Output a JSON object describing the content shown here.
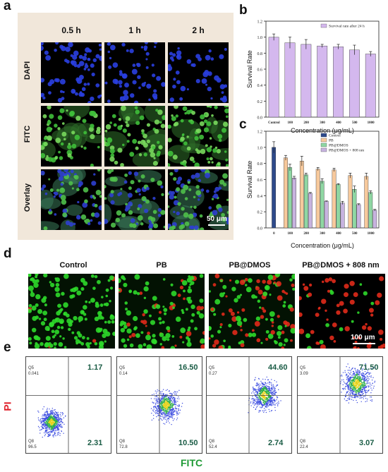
{
  "panels": {
    "a": "a",
    "b": "b",
    "c": "c",
    "d": "d",
    "e": "e"
  },
  "panel_a": {
    "times": [
      "0.5 h",
      "1 h",
      "2 h"
    ],
    "rows": [
      "DAPI",
      "FITC",
      "Overlay"
    ],
    "scalebar": "50 μm"
  },
  "panel_d": {
    "titles": [
      "Control",
      "PB",
      "PB@DMOS",
      "PB@DMOS + 808 nm"
    ],
    "scalebar": "100 μm"
  },
  "panel_e": {
    "ylabel": "PI",
    "xlabel": "FITC",
    "plots": [
      {
        "q2": "1.17",
        "q4": "2.31",
        "q5_label": "Q5",
        "q5_val": "0.041",
        "q8_label": "Q8",
        "q8_val": "96.5"
      },
      {
        "q2": "16.50",
        "q4": "10.50",
        "q5_label": "Q5",
        "q5_val": "0.14",
        "q8_label": "Q8",
        "q8_val": "72.8"
      },
      {
        "q2": "44.60",
        "q4": "2.74",
        "q5_label": "Q5",
        "q5_val": "0.27",
        "q8_label": "Q8",
        "q8_val": "52.4"
      },
      {
        "q2": "71.50",
        "q4": "3.07",
        "q5_label": "Q5",
        "q5_val": "3.09",
        "q8_label": "Q8",
        "q8_val": "22.4"
      }
    ]
  },
  "colors": {
    "control": "#2e4a8b",
    "pb": "#f7c99c",
    "pbdmos": "#8fd7a3",
    "pb808": "#c7b3df",
    "survival24": "#d4b8ee"
  },
  "chart_data": [
    {
      "id": "b",
      "type": "bar",
      "categories": [
        "Control",
        "100",
        "200",
        "300",
        "400",
        "500",
        "1000"
      ],
      "series": [
        {
          "name": "Survival rate after 24 h",
          "values": [
            1.0,
            0.93,
            0.91,
            0.89,
            0.88,
            0.84,
            0.79
          ],
          "errors": [
            0.04,
            0.07,
            0.06,
            0.02,
            0.03,
            0.06,
            0.03
          ]
        }
      ],
      "xlabel": "Concentration (μg/mL)",
      "ylabel": "Survival Rate",
      "ylim": [
        0,
        1.2
      ],
      "yticks": [
        "0.0",
        "0.2",
        "0.4",
        "0.6",
        "0.8",
        "1.0",
        "1.2"
      ],
      "legend": "top-right"
    },
    {
      "id": "c",
      "type": "bar",
      "categories": [
        "0",
        "100",
        "200",
        "300",
        "400",
        "500",
        "1000"
      ],
      "series": [
        {
          "name": "Control",
          "values": [
            1.0,
            null,
            null,
            null,
            null,
            null,
            null
          ],
          "errors": [
            0.07,
            null,
            null,
            null,
            null,
            null,
            null
          ]
        },
        {
          "name": "PB",
          "values": [
            null,
            0.87,
            0.83,
            0.73,
            0.72,
            0.65,
            0.64
          ],
          "errors": [
            null,
            0.03,
            0.06,
            0.02,
            0.02,
            0.03,
            0.04
          ]
        },
        {
          "name": "PB@DMOS",
          "values": [
            null,
            0.75,
            0.66,
            0.58,
            0.54,
            0.48,
            0.44
          ],
          "errors": [
            null,
            0.04,
            0.02,
            0.03,
            0.01,
            0.04,
            0.02
          ]
        },
        {
          "name": "PB@DMOS + 808 nm",
          "values": [
            null,
            0.62,
            0.43,
            0.33,
            0.31,
            0.29,
            0.22
          ],
          "errors": [
            null,
            0.02,
            0.01,
            0.005,
            0.02,
            0.01,
            0.01
          ]
        }
      ],
      "xlabel": "Concentration (μg/mL)",
      "ylabel": "Survival Rate",
      "ylim": [
        0,
        1.2
      ],
      "yticks": [
        "0.0",
        "0.2",
        "0.4",
        "0.6",
        "0.8",
        "1.0",
        "1.2"
      ],
      "legend": "top-right"
    }
  ]
}
